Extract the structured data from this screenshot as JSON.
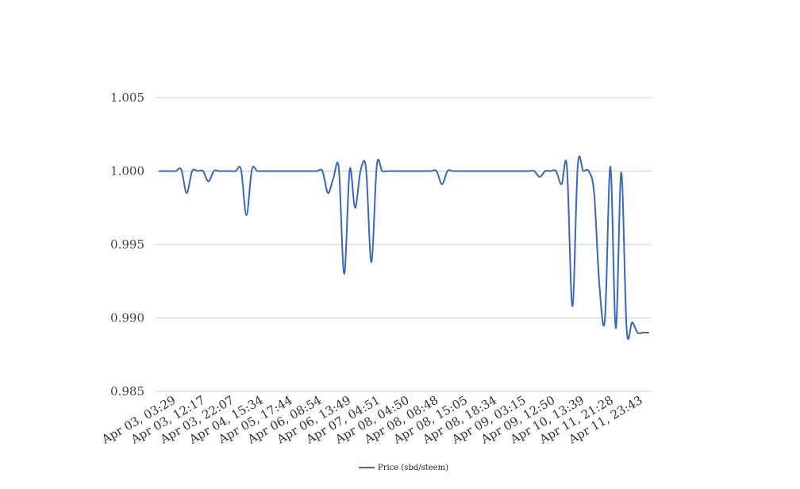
{
  "chart_data": {
    "type": "line",
    "title": "",
    "xlabel": "",
    "ylabel": "",
    "ylim": [
      0.985,
      1.005
    ],
    "yticks": [
      "1.005",
      "1.000",
      "0.995",
      "0.990",
      "0.985"
    ],
    "ytick_values": [
      1.005,
      1.0,
      0.995,
      0.99,
      0.985
    ],
    "grid": true,
    "legend_position": "bottom-center",
    "x_tick_labels": [
      "Apr 03, 03:29",
      "Apr 03, 12:17",
      "Apr 03, 22:07",
      "Apr 04, 15:34",
      "Apr 05, 17:44",
      "Apr 06, 08:54",
      "Apr 06, 13:49",
      "Apr 07, 04:51",
      "Apr 08, 04:50",
      "Apr 08, 08:48",
      "Apr 08, 15:05",
      "Apr 08, 18:34",
      "Apr 09, 03:15",
      "Apr 09, 12:50",
      "Apr 10, 13:39",
      "Apr 11, 21:28",
      "Apr 11, 23:43"
    ],
    "series": [
      {
        "name": "Price (sbd/steem)",
        "color": "#3a66b8",
        "values": [
          1.0,
          1.0,
          1.0,
          1.0,
          1.0001,
          0.9985,
          1.0,
          1.0,
          1.0,
          0.9993,
          1.0,
          1.0,
          1.0,
          1.0,
          1.0,
          1.0001,
          0.997,
          1.0001,
          1.0,
          1.0,
          1.0,
          1.0,
          1.0,
          1.0,
          1.0,
          1.0,
          1.0,
          1.0,
          1.0,
          1.0,
          1.0,
          0.9985,
          0.9995,
          1.0002,
          0.993,
          1.0001,
          0.9975,
          1.0,
          1.0002,
          0.9938,
          1.0004,
          1.0,
          1.0,
          1.0,
          1.0,
          1.0,
          1.0,
          1.0,
          1.0,
          1.0,
          1.0,
          1.0,
          0.9991,
          1.0,
          1.0,
          1.0,
          1.0,
          1.0,
          1.0,
          1.0,
          1.0,
          1.0,
          1.0,
          1.0,
          1.0,
          1.0,
          1.0,
          1.0,
          1.0,
          1.0,
          0.9996,
          1.0,
          1.0,
          1.0,
          0.9991,
          1.0003,
          0.9908,
          1.0004,
          1.0,
          1.0,
          0.9985,
          0.9921,
          0.9899,
          1.0003,
          0.9893,
          0.9999,
          0.9892,
          0.9897,
          0.989,
          0.989,
          0.989
        ]
      }
    ]
  }
}
